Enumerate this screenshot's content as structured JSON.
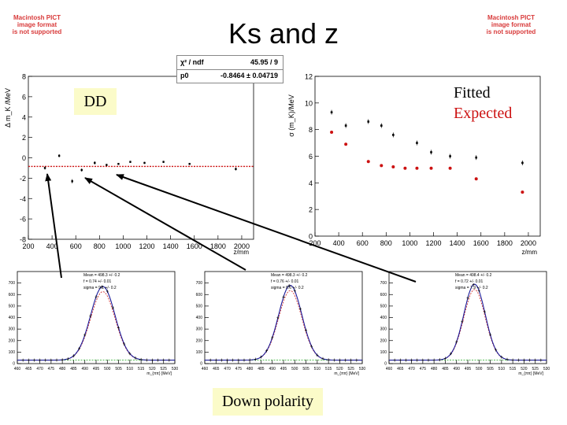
{
  "slide": {
    "title": "Ks and z",
    "dd_label": "DD",
    "polarity_label": "Down polarity",
    "placeholder_text": [
      "Macintosh PICT",
      "image format",
      "is not supported"
    ]
  },
  "fit_box": {
    "chi2_label": "χ² / ndf",
    "chi2_value": "45.95 / 9",
    "p0_label": "p0",
    "p0_value": "-0.8464 ± 0.04719"
  },
  "legend": {
    "fitted": "Fitted",
    "expected": "Expected"
  },
  "colors": {
    "fitted_marker": "#000000",
    "expected_marker": "#cc1111",
    "fit_line": "#cc1111",
    "histogram": "#1a1a99",
    "gauss_fit": "#cc2222",
    "background_fit": "#22aa22",
    "label_bg": "#fbfbc9"
  },
  "chart_data": [
    {
      "type": "scatter",
      "xlabel": "z/mm",
      "ylabel": "Δ m_K /MeV",
      "xlim": [
        200,
        2100
      ],
      "ylim": [
        -8,
        8
      ],
      "xticks": [
        200,
        400,
        600,
        800,
        1000,
        1200,
        1400,
        1600,
        1800,
        2000
      ],
      "yticks": [
        -8,
        -6,
        -4,
        -2,
        0,
        2,
        4,
        6,
        8
      ],
      "grid": false,
      "fit_line_y": -0.8464,
      "series": [
        {
          "x": [
            340,
            460,
            570,
            650,
            760,
            860,
            960,
            1060,
            1180,
            1340,
            1560,
            1950
          ],
          "y": [
            -1.0,
            0.2,
            -2.3,
            -1.2,
            -0.5,
            -0.7,
            -0.6,
            -0.4,
            -0.5,
            -0.4,
            -0.6,
            -1.1
          ],
          "err": [
            0.15,
            0.15,
            0.2,
            0.15,
            0.15,
            0.1,
            0.1,
            0.1,
            0.1,
            0.1,
            0.1,
            0.15
          ]
        }
      ]
    },
    {
      "type": "scatter",
      "xlabel": "z/mm",
      "ylabel": "σ (m_K)/MeV",
      "xlim": [
        200,
        2100
      ],
      "ylim": [
        0,
        12
      ],
      "xticks": [
        200,
        400,
        600,
        800,
        1000,
        1200,
        1400,
        1600,
        1800,
        2000
      ],
      "yticks": [
        0,
        2,
        4,
        6,
        8,
        10,
        12
      ],
      "grid": false,
      "series": [
        {
          "name": "Fitted",
          "x": [
            340,
            460,
            650,
            760,
            860,
            1060,
            1180,
            1340,
            1560,
            1950
          ],
          "y": [
            9.3,
            8.3,
            8.6,
            8.3,
            7.6,
            7.0,
            6.3,
            6.0,
            5.9,
            5.5
          ]
        },
        {
          "name": "Expected",
          "x": [
            340,
            460,
            650,
            760,
            860,
            960,
            1060,
            1180,
            1340,
            1560,
            1950
          ],
          "y": [
            7.8,
            6.9,
            5.6,
            5.3,
            5.2,
            5.1,
            5.1,
            5.1,
            5.1,
            4.3,
            3.3
          ]
        }
      ]
    },
    {
      "type": "line",
      "xlabel": "m_{ππ} [MeV]",
      "xlim": [
        460,
        530
      ],
      "ylim": [
        0,
        800
      ],
      "xticks": [
        460,
        465,
        470,
        475,
        480,
        485,
        490,
        495,
        500,
        505,
        510,
        515,
        520,
        525,
        530
      ],
      "yticks": [
        0,
        100,
        200,
        300,
        400,
        500,
        600,
        700
      ],
      "stats": [
        "Mean = 498.3 +/- 0.2",
        "f = 0.74 +/- 0.01",
        "sigma = 9.1 +/- 0.2"
      ],
      "center": 498,
      "sigma": 9.1,
      "peak": 640,
      "baseline": 30
    },
    {
      "type": "line",
      "xlabel": "m_{ππ} [MeV]",
      "xlim": [
        460,
        530
      ],
      "ylim": [
        0,
        800
      ],
      "xticks": [
        460,
        465,
        470,
        475,
        480,
        485,
        490,
        495,
        500,
        505,
        510,
        515,
        520,
        525,
        530
      ],
      "yticks": [
        0,
        100,
        200,
        300,
        400,
        500,
        600,
        700
      ],
      "stats": [
        "Mean = 498.3 +/- 0.2",
        "f = 0.76 +/- 0.01",
        "sigma = 8.6 +/- 0.2"
      ],
      "center": 498,
      "sigma": 8.6,
      "peak": 650,
      "baseline": 30
    },
    {
      "type": "line",
      "xlabel": "m_{ππ} [MeV]",
      "xlim": [
        460,
        530
      ],
      "ylim": [
        0,
        800
      ],
      "xticks": [
        460,
        465,
        470,
        475,
        480,
        485,
        490,
        495,
        500,
        505,
        510,
        515,
        520,
        525,
        530
      ],
      "yticks": [
        0,
        100,
        200,
        300,
        400,
        500,
        600,
        700
      ],
      "stats": [
        "Mean = 498.4 +/- 0.2",
        "f = 0.72 +/- 0.01",
        "sigma = 7.9 +/- 0.2"
      ],
      "center": 498,
      "sigma": 7.9,
      "peak": 660,
      "baseline": 30
    }
  ]
}
